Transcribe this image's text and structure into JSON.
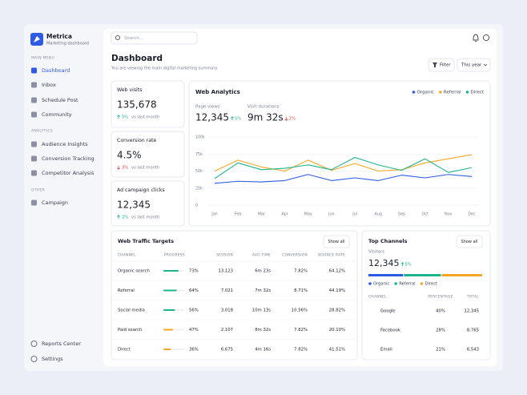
{
  "sidebar": {
    "brand": "Metrica",
    "tagline": "Marketing dashboard",
    "sections": [
      {
        "title": "MAIN MENU",
        "items": [
          {
            "label": "Dashboard",
            "active": true
          },
          {
            "label": "Inbox"
          },
          {
            "label": "Schedule Post"
          },
          {
            "label": "Community"
          }
        ]
      },
      {
        "title": "ANALYTICS",
        "items": [
          {
            "label": "Audience Insights"
          },
          {
            "label": "Conversion Tracking"
          },
          {
            "label": "Competitor Analysis"
          }
        ]
      },
      {
        "title": "OTHER",
        "items": [
          {
            "label": "Campaign"
          }
        ]
      }
    ],
    "footer": [
      "Reports Center",
      "Settings"
    ]
  },
  "topbar": {
    "search_placeholder": "Search..."
  },
  "header": {
    "title": "Dashboard",
    "subtitle": "You are viewing the main digital marketing summary.",
    "filter": "Filter",
    "period": "This year"
  },
  "kpis": [
    {
      "label": "Web visits",
      "value": "135,678",
      "change": "5%",
      "direction": "up",
      "note": "vs last month"
    },
    {
      "label": "Conversion rate",
      "value": "4.5%",
      "change": "3%",
      "direction": "down",
      "note": "vs last month"
    },
    {
      "label": "Ad campaign clicks",
      "value": "12,345",
      "change": "2%",
      "direction": "up",
      "note": "vs last month"
    }
  ],
  "web_analytics": {
    "title": "Web Analytics",
    "metrics": [
      {
        "label": "Page views",
        "value": "12,345",
        "change": "5%",
        "direction": "up"
      },
      {
        "label": "Visit durations",
        "value": "9m 32s",
        "change": "2%",
        "direction": "down"
      }
    ],
    "chart_data": {
      "type": "line",
      "categories": [
        "Jan",
        "Feb",
        "Mar",
        "Apr",
        "May",
        "Jun",
        "Jul",
        "Aug",
        "Sep",
        "Oct",
        "Nov",
        "Dec"
      ],
      "series": [
        {
          "name": "Organic",
          "color": "#2d5be3",
          "values": [
            32000,
            35000,
            34000,
            36000,
            45000,
            36000,
            40000,
            36000,
            44000,
            40000,
            45000,
            42000
          ]
        },
        {
          "name": "Referral",
          "color": "#f5a623",
          "values": [
            50000,
            66000,
            56000,
            50000,
            66000,
            51000,
            61000,
            50000,
            52000,
            62000,
            68000,
            74000
          ]
        },
        {
          "name": "Direct",
          "color": "#1db38e",
          "values": [
            39000,
            62000,
            52000,
            54000,
            59000,
            52000,
            70000,
            59000,
            51000,
            68000,
            48000,
            55000
          ]
        }
      ],
      "ylim": [
        0,
        100000
      ],
      "yticks": [
        0,
        {
          "value": 25000,
          "label": "25k"
        },
        {
          "value": 50000,
          "label": "50k"
        },
        {
          "value": 75000,
          "label": "75k"
        },
        {
          "value": 100000,
          "label": "100k"
        }
      ],
      "grid": true,
      "legend": "top-right"
    }
  },
  "traffic_targets": {
    "title": "Web Traffic Targets",
    "action": "Show all",
    "columns": [
      "CHANNEL",
      "PROGRESS",
      "SESSION",
      "AVG TIME",
      "CONVERSION",
      "BOUNCE RATE"
    ],
    "rows": [
      {
        "channel": "Organic search",
        "progress": 73,
        "progress_label": "73%",
        "color": "#1db38e",
        "session": "13,123",
        "avg_time": "6m 23s",
        "conversion": "7.82%",
        "bounce_rate": "64.12%"
      },
      {
        "channel": "Referral",
        "progress": 64,
        "progress_label": "64%",
        "color": "#1db38e",
        "session": "7,021",
        "avg_time": "7m 32s",
        "conversion": "8.71%",
        "bounce_rate": "44.19%"
      },
      {
        "channel": "Social media",
        "progress": 56,
        "progress_label": "56%",
        "color": "#1db38e",
        "session": "3,018",
        "avg_time": "10m 13s",
        "conversion": "10.56%",
        "bounce_rate": "28.82%"
      },
      {
        "channel": "Paid search",
        "progress": 47,
        "progress_label": "47%",
        "color": "#f5a623",
        "session": "2,107",
        "avg_time": "8m 32s",
        "conversion": "7.82%",
        "bounce_rate": "20.10%"
      },
      {
        "channel": "Direct",
        "progress": 36,
        "progress_label": "36%",
        "color": "#f5a623",
        "session": "6,675",
        "avg_time": "4m 16s",
        "conversion": "7.82%",
        "bounce_rate": "41.51%"
      }
    ]
  },
  "top_channels": {
    "title": "Top Channels",
    "action": "Show all",
    "visitors_label": "Visitors",
    "visitors": "12,345",
    "change": "5%",
    "direction": "up",
    "share": [
      {
        "name": "Organic",
        "color": "#2d5be3",
        "value": 31
      },
      {
        "name": "Referral",
        "color": "#1db38e",
        "value": 33
      },
      {
        "name": "Direct",
        "color": "#f5a623",
        "value": 36
      }
    ],
    "columns": [
      "CHANNEL",
      "PERCENTAGE",
      "TOTAL"
    ],
    "rows": [
      {
        "channel": "Google",
        "percentage": "40%",
        "total": "12,345"
      },
      {
        "channel": "Facebook",
        "percentage": "28%",
        "total": "8,765"
      },
      {
        "channel": "Email",
        "percentage": "21%",
        "total": "6,543"
      }
    ]
  }
}
